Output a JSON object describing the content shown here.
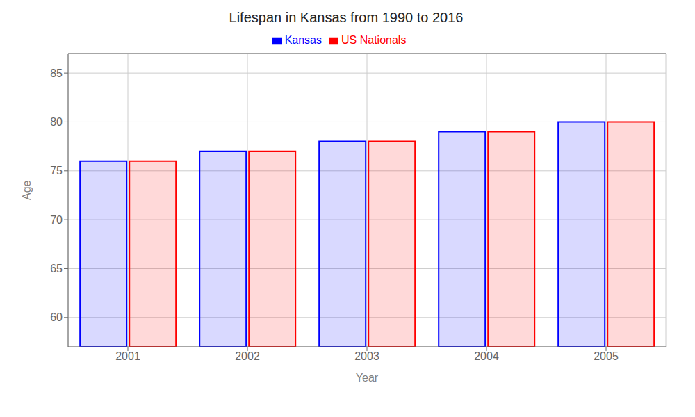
{
  "chart_data": {
    "type": "bar",
    "title": "Lifespan in Kansas from 1990 to 2016",
    "x_label": "Year",
    "y_label": "Age",
    "categories": [
      "2001",
      "2002",
      "2003",
      "2004",
      "2005"
    ],
    "series": [
      {
        "name": "Kansas",
        "color": "#0000ff",
        "values": [
          76.0,
          77.0,
          78.0,
          79.0,
          80.0
        ]
      },
      {
        "name": "US Nationals",
        "color": "#ff0000",
        "values": [
          76.0,
          77.0,
          78.0,
          79.0,
          80.0
        ]
      }
    ],
    "ylim": [
      57,
      87
    ],
    "yticks": [
      60,
      65,
      70,
      75,
      80,
      85
    ],
    "grid": true,
    "legend": "top"
  }
}
